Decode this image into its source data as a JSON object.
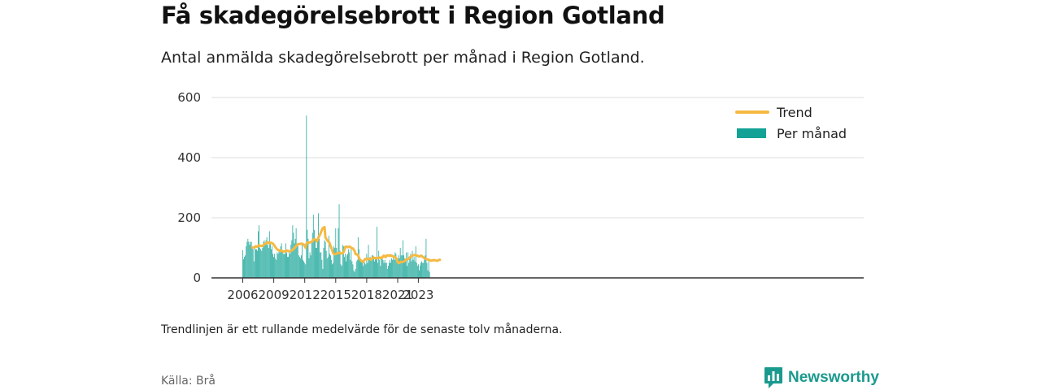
{
  "header": {
    "title": "Få skadegörelsebrott i Region Gotland",
    "subtitle": "Antal anmälda skadegörelsebrott per månad i Region Gotland."
  },
  "footer": {
    "note": "Trendlinjen är ett rullande medelvärde för de senaste tolv månaderna.",
    "source": "Källa: Brå",
    "brand": "Newsworthy"
  },
  "colors": {
    "bars": "#13a396",
    "trend": "#f5b942",
    "grid": "#dddddd",
    "axis": "#333333",
    "brand": "#1a9a8e"
  },
  "icons": {
    "brand_logo": "newsworthy-chart-bubble-icon"
  },
  "chart_data": {
    "type": "bar",
    "title": "",
    "xlabel": "",
    "ylabel": "",
    "ylim": [
      0,
      600
    ],
    "y_ticks": [
      "0",
      "200",
      "400",
      "600"
    ],
    "x_ticks": [
      "2006",
      "2009",
      "2012",
      "2015",
      "2018",
      "2021",
      "2023"
    ],
    "grid": true,
    "legend_position": "top-right",
    "x_start": "2006-01",
    "x_frequency": "monthly",
    "series": [
      {
        "name": "Per månad",
        "type": "bar",
        "values": [
          92,
          62,
          70,
          75,
          105,
          120,
          130,
          120,
          110,
          120,
          120,
          100,
          95,
          55,
          100,
          95,
          95,
          90,
          155,
          175,
          100,
          95,
          90,
          100,
          120,
          125,
          110,
          125,
          135,
          110,
          100,
          155,
          115,
          95,
          105,
          80,
          70,
          80,
          65,
          60,
          85,
          80,
          90,
          85,
          105,
          115,
          85,
          80,
          80,
          80,
          115,
          85,
          70,
          70,
          85,
          80,
          110,
          125,
          175,
          150,
          115,
          130,
          165,
          110,
          115,
          75,
          70,
          65,
          75,
          115,
          60,
          55,
          50,
          45,
          540,
          160,
          130,
          65,
          85,
          75,
          120,
          150,
          210,
          160,
          130,
          100,
          100,
          130,
          215,
          130,
          85,
          85,
          60,
          30,
          100,
          125,
          120,
          90,
          65,
          70,
          140,
          80,
          75,
          60,
          45,
          50,
          105,
          100,
          165,
          100,
          85,
          165,
          245,
          90,
          45,
          40,
          110,
          105,
          70,
          80,
          55,
          75,
          80,
          95,
          85,
          60,
          95,
          55,
          45,
          25,
          20,
          30,
          55,
          60,
          135,
          95,
          70,
          60,
          55,
          50,
          40,
          65,
          50,
          45,
          80,
          50,
          110,
          65,
          70,
          60,
          75,
          75,
          70,
          55,
          70,
          65,
          170,
          50,
          90,
          60,
          40,
          70,
          70,
          60,
          50,
          60,
          50,
          50,
          30,
          40,
          50,
          60,
          50,
          65,
          60,
          70,
          60,
          85,
          80,
          65,
          60,
          75,
          65,
          100,
          75,
          75,
          125,
          75,
          65,
          55,
          85,
          40,
          85,
          50,
          70,
          80,
          55,
          90,
          60,
          70,
          55,
          105,
          50,
          40,
          45,
          25,
          40,
          50,
          55,
          50,
          50,
          70,
          75,
          130,
          50,
          25,
          55,
          20
        ]
      },
      {
        "name": "Trend",
        "type": "line",
        "values": [
          null,
          null,
          null,
          null,
          null,
          null,
          null,
          null,
          null,
          null,
          null,
          101,
          101,
          100,
          103,
          105,
          104,
          104,
          107,
          109,
          107,
          106,
          106,
          107,
          109,
          112,
          113,
          115,
          118,
          117,
          118,
          115,
          117,
          117,
          115,
          114,
          110,
          106,
          102,
          98,
          95,
          93,
          92,
          90,
          90,
          91,
          89,
          87,
          88,
          88,
          90,
          91,
          90,
          89,
          89,
          89,
          90,
          91,
          93,
          96,
          99,
          103,
          107,
          108,
          112,
          113,
          113,
          113,
          114,
          114,
          112,
          110,
          106,
          100,
          114,
          117,
          118,
          117,
          118,
          119,
          120,
          123,
          128,
          128,
          128,
          126,
          121,
          126,
          135,
          140,
          145,
          153,
          160,
          166,
          166,
          169,
          135,
          130,
          126,
          122,
          120,
          115,
          106,
          100,
          91,
          82,
          80,
          79,
          79,
          80,
          82,
          82,
          83,
          83,
          82,
          81,
          82,
          85,
          92,
          103,
          104,
          103,
          102,
          104,
          103,
          103,
          100,
          98,
          98,
          94,
          89,
          79,
          78,
          78,
          76,
          66,
          62,
          58,
          56,
          55,
          53,
          58,
          62,
          63,
          62,
          64,
          63,
          64,
          63,
          60,
          64,
          66,
          68,
          66,
          66,
          65,
          67,
          66,
          67,
          68,
          65,
          68,
          67,
          72,
          74,
          71,
          69,
          74,
          75,
          74,
          75,
          73,
          75,
          73,
          73,
          71,
          70,
          69,
          66,
          62,
          52,
          49,
          50,
          53,
          53,
          53,
          53,
          54,
          56,
          60,
          61,
          62,
          63,
          64,
          68,
          70,
          72,
          74,
          75,
          76,
          76,
          75,
          74,
          74,
          72,
          71,
          72,
          74,
          73,
          70,
          68,
          66,
          64,
          63,
          62,
          61,
          60,
          59,
          58,
          57,
          58,
          58,
          59,
          59,
          58,
          57,
          57,
          58,
          60,
          60
        ]
      }
    ]
  }
}
